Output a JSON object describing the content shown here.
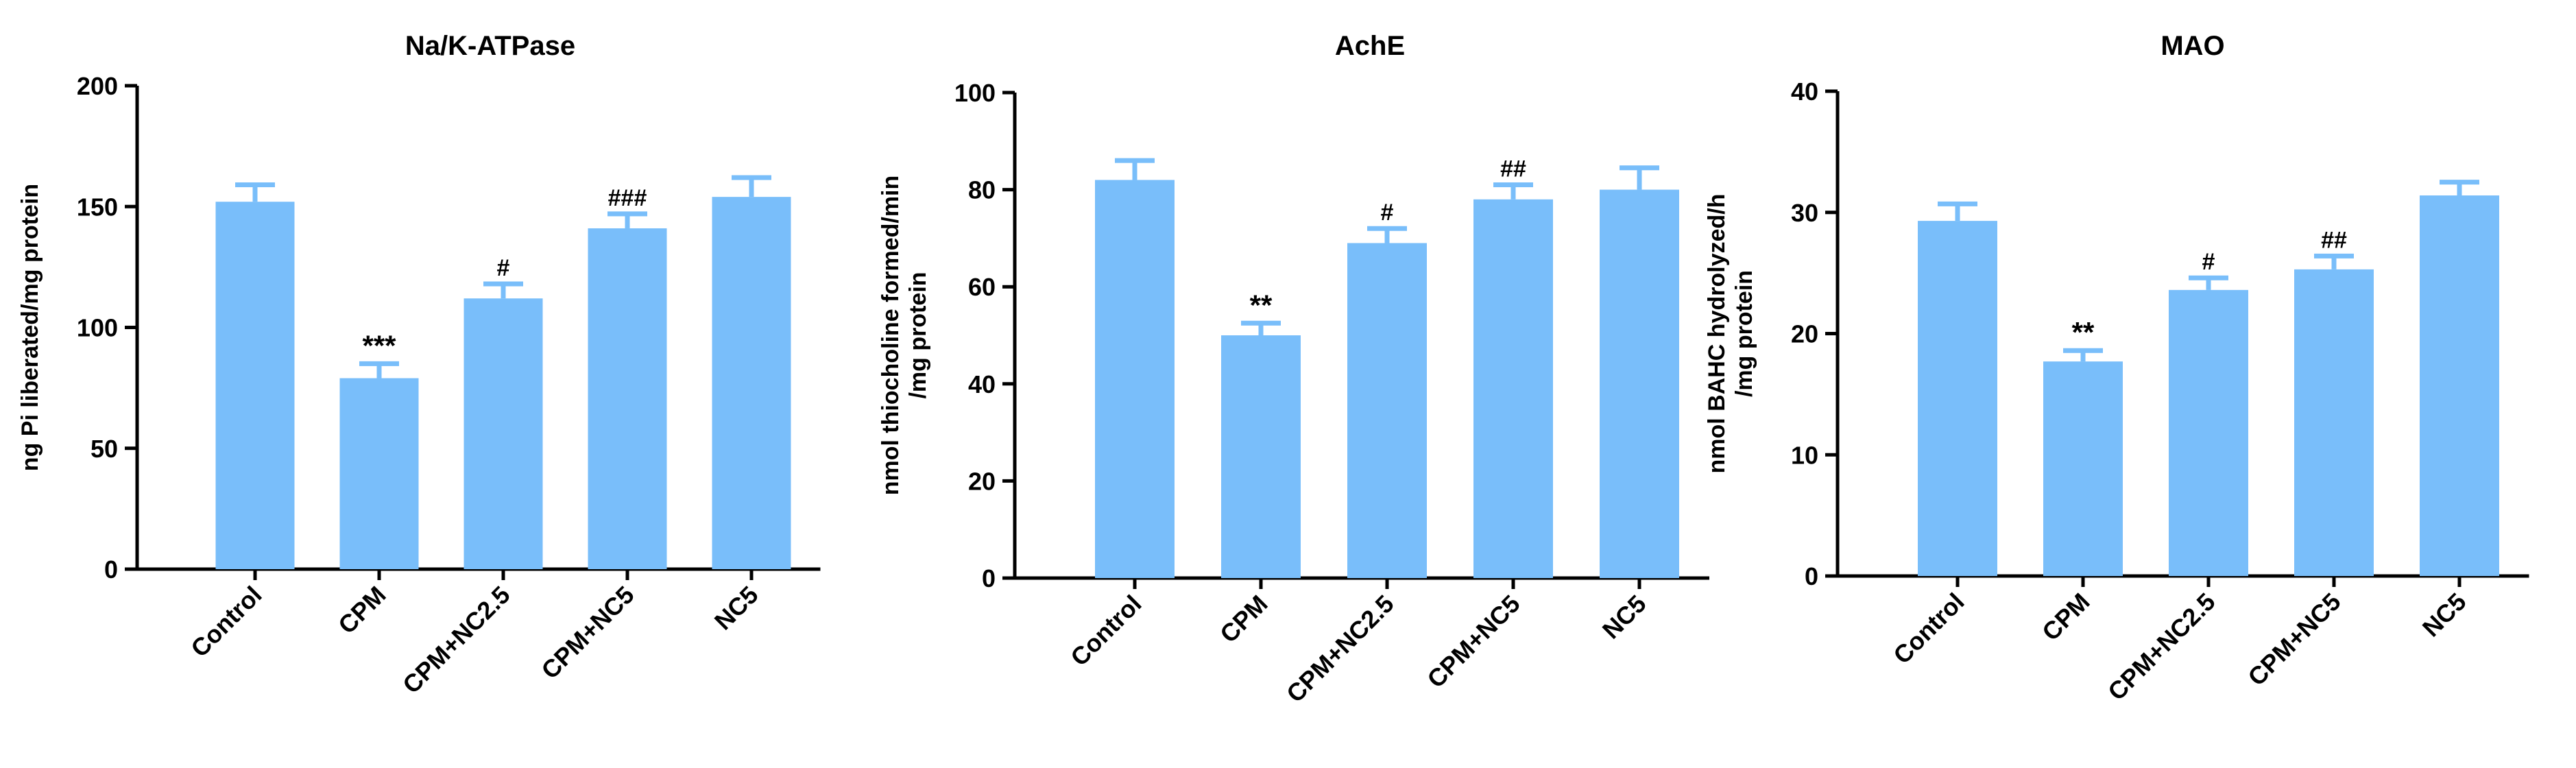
{
  "colors": {
    "bar": "#79BEFA",
    "axis": "#000000",
    "text": "#000000"
  },
  "chart_data": [
    {
      "type": "bar",
      "title": "Na/K-ATPase",
      "ylabel": "ng Pi liberated/mg protein",
      "ylim": [
        0,
        200
      ],
      "yticks": [
        "0",
        "50",
        "100",
        "150",
        "200"
      ],
      "categories": [
        "Control",
        "CPM",
        "CPM+NC2.5",
        "CPM+NC5",
        "NC5"
      ],
      "values": [
        152,
        79,
        112,
        141,
        154
      ],
      "errors": [
        7,
        6,
        6,
        6,
        8
      ],
      "annotations": [
        "",
        "***",
        "#",
        "###",
        ""
      ]
    },
    {
      "type": "bar",
      "title": "AchE",
      "ylabel": "nmol thiocholine formed/min\n/mg protein",
      "ylim": [
        0,
        100
      ],
      "yticks": [
        "0",
        "20",
        "40",
        "60",
        "80",
        "100"
      ],
      "categories": [
        "Control",
        "CPM",
        "CPM+NC2.5",
        "CPM+NC5",
        "NC5"
      ],
      "values": [
        82,
        50,
        69,
        78,
        80
      ],
      "errors": [
        4,
        2.5,
        3,
        3,
        4.5
      ],
      "annotations": [
        "",
        "**",
        "#",
        "##",
        ""
      ]
    },
    {
      "type": "bar",
      "title": "MAO",
      "ylabel": "nmol BAHC hydrolyzed/h\n/mg protein",
      "ylim": [
        0,
        40
      ],
      "yticks": [
        "0",
        "10",
        "20",
        "30",
        "40"
      ],
      "categories": [
        "Control",
        "CPM",
        "CPM+NC2.5",
        "CPM+NC5",
        "NC5"
      ],
      "values": [
        29.3,
        17.7,
        23.6,
        25.3,
        31.4
      ],
      "errors": [
        1.4,
        0.9,
        1.0,
        1.1,
        1.1
      ],
      "annotations": [
        "",
        "**",
        "#",
        "##",
        ""
      ]
    }
  ]
}
